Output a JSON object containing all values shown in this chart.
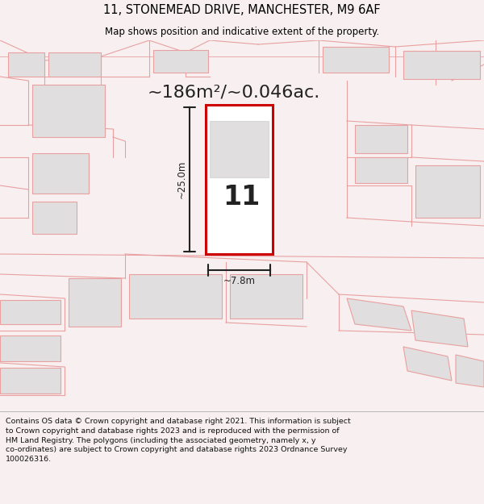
{
  "title": "11, STONEMEAD DRIVE, MANCHESTER, M9 6AF",
  "subtitle": "Map shows position and indicative extent of the property.",
  "area_text": "~186m²/~0.046ac.",
  "number_label": "11",
  "dim_height": "~25.0m",
  "dim_width": "~7.8m",
  "footer": "Contains OS data © Crown copyright and database right 2021. This information is subject to Crown copyright and database rights 2023 and is reproduced with the permission of HM Land Registry. The polygons (including the associated geometry, namely x, y co-ordinates) are subject to Crown copyright and database rights 2023 Ordnance Survey 100026316.",
  "bg_color": "#f8f0f0",
  "map_bg": "#faf5f5",
  "footer_bg": "#ffffff",
  "red_color": "#cc0000",
  "pink_color": "#e8a0a0",
  "light_gray": "#d8d8d8",
  "building_fill": "#e0dede",
  "dark": "#222222"
}
